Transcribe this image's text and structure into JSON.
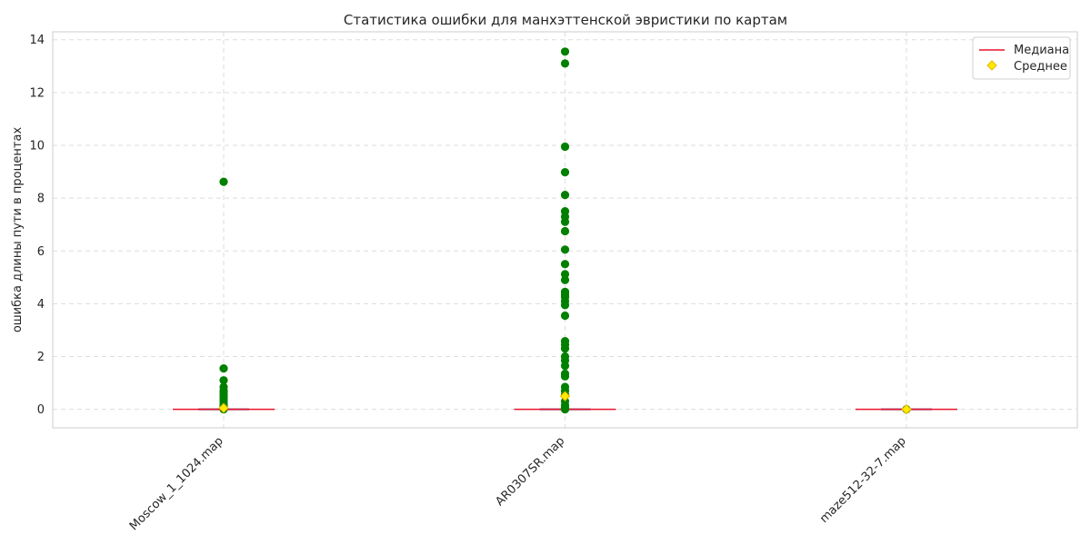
{
  "chart_data": {
    "type": "box-scatter",
    "title": "Статистика ошибки для манхэттенской эвристики по картам",
    "ylabel": "ошибка длины пути в процентах",
    "xlabel": "",
    "categories": [
      "Moscow_1_1024.map",
      "AR0307SR.map",
      "maze512-32-7.map"
    ],
    "ylim": [
      -0.7,
      14.3
    ],
    "yticks": [
      0,
      2,
      4,
      6,
      8,
      10,
      12,
      14
    ],
    "grid": true,
    "legend": {
      "position": "top-right",
      "entries": [
        {
          "label": "Медиана",
          "marker": "line",
          "color": "#e8142a"
        },
        {
          "label": "Среднее",
          "marker": "diamond",
          "color": "#ffea00"
        }
      ]
    },
    "point_color": "#008000",
    "median": [
      0,
      0,
      0
    ],
    "mean": [
      0.05,
      0.5,
      0
    ],
    "points": [
      [
        8.62,
        1.55,
        1.1,
        0.85,
        0.7,
        0.6,
        0.5,
        0.4,
        0.3,
        0.2,
        0.15,
        0.1,
        0.05,
        0
      ],
      [
        13.55,
        13.1,
        9.95,
        8.98,
        8.12,
        7.5,
        7.3,
        7.1,
        6.75,
        6.05,
        5.5,
        5.12,
        4.9,
        4.45,
        4.35,
        4.25,
        4.1,
        3.95,
        3.55,
        2.58,
        2.45,
        2.3,
        2.0,
        1.85,
        1.65,
        1.35,
        1.25,
        0.85,
        0.7,
        0.55,
        0.3,
        0.15,
        0.05,
        0
      ],
      [
        0
      ]
    ]
  }
}
